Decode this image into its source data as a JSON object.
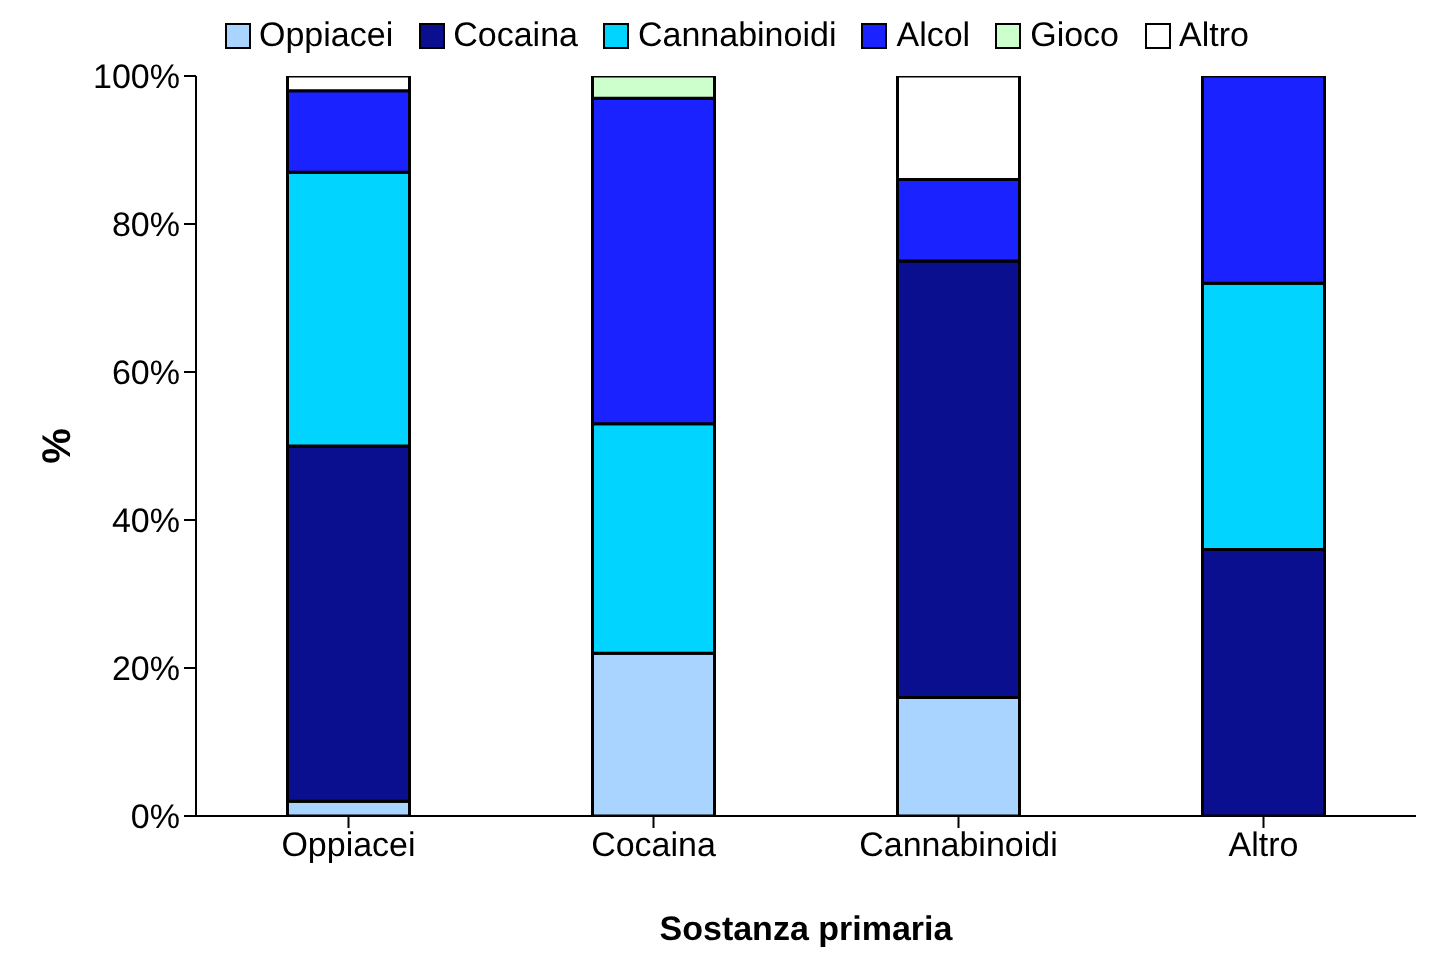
{
  "chart_data": {
    "type": "bar",
    "stacked": true,
    "xlabel": "Sostanza primaria",
    "ylabel": "%",
    "categories": [
      "Oppiacei",
      "Cocaina",
      "Cannabinoidi",
      "Altro"
    ],
    "series": [
      {
        "name": "Oppiacei",
        "color": "#a8d4ff",
        "values": [
          2,
          22,
          16,
          0
        ]
      },
      {
        "name": "Cocaina",
        "color": "#0a0f8f",
        "values": [
          48,
          0,
          59,
          36
        ]
      },
      {
        "name": "Cannabinoidi",
        "color": "#00d4ff",
        "values": [
          37,
          31,
          0,
          36
        ]
      },
      {
        "name": "Alcol",
        "color": "#1a22ff",
        "values": [
          11,
          44,
          11,
          28
        ]
      },
      {
        "name": "Gioco",
        "color": "#ccffcc",
        "values": [
          0,
          3,
          0,
          0
        ]
      },
      {
        "name": "Altro",
        "color": "#ffffff",
        "values": [
          2,
          0,
          14,
          0
        ]
      }
    ],
    "ylim": [
      0,
      100
    ],
    "yticks": [
      {
        "value": 0,
        "label": "0%"
      },
      {
        "value": 20,
        "label": "20%"
      },
      {
        "value": 40,
        "label": "40%"
      },
      {
        "value": 60,
        "label": "60%"
      },
      {
        "value": 80,
        "label": "80%"
      },
      {
        "value": 100,
        "label": "100%"
      }
    ],
    "grid": false,
    "legend": "top"
  }
}
